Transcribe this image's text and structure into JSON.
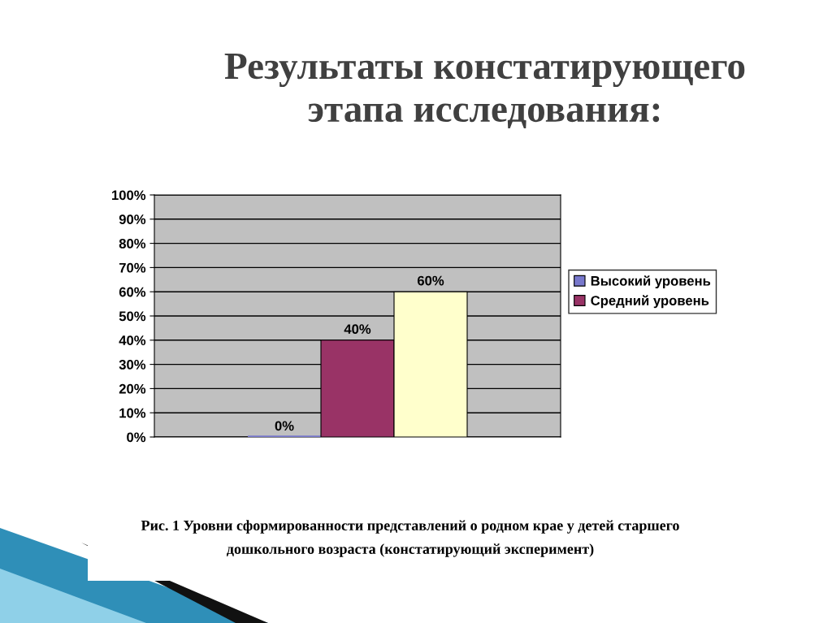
{
  "chart_data": {
    "type": "bar",
    "title": "Результаты констатирующего этапа исследования:",
    "annotations": [
      "Рис. 1 Уровни сформированности представлений о родном крае у детей старшего дошкольного возраста (констатирующий эксперимент)"
    ],
    "categories": [
      null
    ],
    "series": [
      {
        "name": "Высокий уровень",
        "color": "#7878cc",
        "values": [
          0
        ],
        "value_labels": [
          "0%"
        ]
      },
      {
        "name": "Средний уровень",
        "color": "#993366",
        "values": [
          40
        ],
        "value_labels": [
          "40%"
        ]
      },
      {
        "color": "#ffffcc",
        "values": [
          60
        ],
        "value_labels": [
          "60%"
        ]
      }
    ],
    "ylim": [
      0,
      100
    ],
    "yticks": [
      {
        "value": 0,
        "label": "0%"
      },
      {
        "value": 10,
        "label": "10%"
      },
      {
        "value": 20,
        "label": "20%"
      },
      {
        "value": 30,
        "label": "30%"
      },
      {
        "value": 40,
        "label": "40%"
      },
      {
        "value": 50,
        "label": "50%"
      },
      {
        "value": 60,
        "label": "60%"
      },
      {
        "value": 70,
        "label": "70%"
      },
      {
        "value": 80,
        "label": "80%"
      },
      {
        "value": 90,
        "label": "90%"
      },
      {
        "value": 100,
        "label": "100%"
      }
    ],
    "grid": "y",
    "legend": "right"
  }
}
